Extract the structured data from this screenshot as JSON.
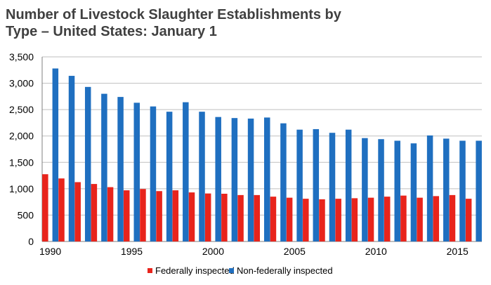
{
  "chart_data": {
    "type": "bar",
    "title_lines": [
      "Number of Livestock Slaughter Establishments by",
      "Type – United  States: January 1"
    ],
    "xlabel": "",
    "ylabel": "",
    "ylim": [
      0,
      3500
    ],
    "yticks": [
      {
        "value": 0,
        "label": "0"
      },
      {
        "value": 500,
        "label": "500"
      },
      {
        "value": 1000,
        "label": "1,000"
      },
      {
        "value": 1500,
        "label": "1,500"
      },
      {
        "value": 2000,
        "label": "2,000"
      },
      {
        "value": 2500,
        "label": "2,500"
      },
      {
        "value": 3000,
        "label": "3,000"
      },
      {
        "value": 3500,
        "label": "3,500"
      }
    ],
    "categories": [
      1990,
      1991,
      1992,
      1993,
      1994,
      1995,
      1996,
      1997,
      1998,
      1999,
      2000,
      2001,
      2002,
      2003,
      2004,
      2005,
      2006,
      2007,
      2008,
      2009,
      2010,
      2011,
      2012,
      2013,
      2014,
      2015,
      2016
    ],
    "xtick_labels": [
      {
        "value": 1990,
        "label": "1990"
      },
      {
        "value": 1995,
        "label": "1995"
      },
      {
        "value": 2000,
        "label": "2000"
      },
      {
        "value": 2005,
        "label": "2005"
      },
      {
        "value": 2010,
        "label": "2010"
      },
      {
        "value": 2015,
        "label": "2015"
      }
    ],
    "grid": true,
    "legend_position": "bottom",
    "series": [
      {
        "name": "Federally inspected",
        "color": "#e8241c",
        "values": [
          1275,
          1195,
          1125,
          1090,
          1030,
          970,
          995,
          955,
          970,
          930,
          910,
          905,
          880,
          880,
          850,
          830,
          810,
          800,
          810,
          820,
          830,
          850,
          870,
          830,
          860,
          880,
          810
        ]
      },
      {
        "name": "Non-federally inspected",
        "color": "#1f6fc0",
        "values": [
          3280,
          3140,
          2930,
          2800,
          2740,
          2630,
          2560,
          2460,
          2640,
          2460,
          2360,
          2340,
          2330,
          2350,
          2240,
          2120,
          2130,
          2060,
          2120,
          1960,
          1940,
          1910,
          1860,
          2010,
          1950,
          1910,
          1910
        ]
      }
    ]
  }
}
